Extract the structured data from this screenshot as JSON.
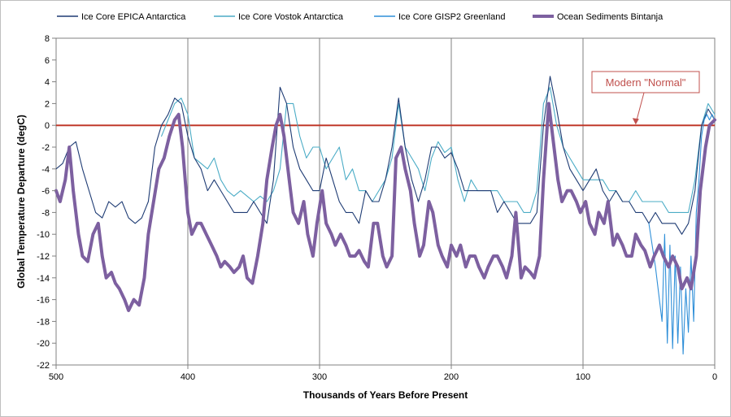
{
  "chart_data": {
    "type": "line",
    "title": "",
    "xlabel": "Thousands of Years Before Present",
    "ylabel": "Global Temperature Departure (degC)",
    "xlim": [
      500,
      0
    ],
    "ylim": [
      -22,
      8
    ],
    "x_ticks": [
      500,
      400,
      300,
      200,
      100,
      0
    ],
    "y_ticks": [
      8,
      6,
      4,
      2,
      0,
      -2,
      -4,
      -6,
      -8,
      -10,
      -12,
      -14,
      -16,
      -18,
      -20,
      -22
    ],
    "grid": "vertical",
    "legend_position": "top",
    "reference_line": {
      "y": 0,
      "color": "#c0392b"
    },
    "annotation": {
      "text": "Modern \"Normal\"",
      "points_to": {
        "x": 60,
        "y": 0
      }
    },
    "series": [
      {
        "name": "Ice Core EPICA Antarctica",
        "color": "#1f3c74",
        "x": [
          500,
          495,
          490,
          485,
          480,
          475,
          470,
          465,
          460,
          455,
          450,
          445,
          440,
          435,
          430,
          425,
          420,
          415,
          410,
          405,
          400,
          395,
          390,
          385,
          380,
          375,
          370,
          365,
          360,
          355,
          350,
          345,
          340,
          335,
          330,
          325,
          320,
          315,
          310,
          305,
          300,
          295,
          290,
          285,
          280,
          275,
          270,
          265,
          260,
          255,
          250,
          245,
          240,
          235,
          230,
          225,
          220,
          215,
          210,
          205,
          200,
          195,
          190,
          185,
          180,
          175,
          170,
          165,
          160,
          155,
          150,
          145,
          140,
          135,
          130,
          125,
          120,
          115,
          110,
          105,
          100,
          95,
          90,
          85,
          80,
          75,
          70,
          65,
          60,
          55,
          50,
          45,
          40,
          35,
          30,
          25,
          20,
          15,
          10,
          5,
          0
        ],
        "y": [
          -4,
          -3.5,
          -2,
          -1.5,
          -4,
          -6,
          -8,
          -8.5,
          -7,
          -7.5,
          -7,
          -8.5,
          -9,
          -8.5,
          -7,
          -2,
          0,
          1,
          2.5,
          2,
          -1,
          -3,
          -4,
          -6,
          -5,
          -6,
          -7,
          -8,
          -8,
          -8,
          -7,
          -8,
          -9,
          -5,
          3.5,
          2,
          -2,
          -4,
          -5,
          -6,
          -6,
          -3,
          -5,
          -7,
          -8,
          -8,
          -9,
          -6,
          -7,
          -7,
          -5,
          -2,
          2.5,
          -2,
          -5,
          -7,
          -5,
          -2,
          -2,
          -3,
          -2.5,
          -4,
          -6,
          -6,
          -6,
          -6,
          -6,
          -8,
          -7,
          -8,
          -9,
          -9,
          -9,
          -8,
          0,
          4.5,
          1.5,
          -2,
          -4,
          -5,
          -6,
          -5,
          -4,
          -6,
          -7,
          -6,
          -7,
          -7,
          -8,
          -8,
          -9,
          -8,
          -9,
          -9,
          -9,
          -10,
          -9,
          -6,
          0,
          1.5,
          0.5
        ]
      },
      {
        "name": "Ice Core Vostok Antarctica",
        "color": "#4bacc6",
        "x": [
          420,
          415,
          410,
          405,
          400,
          395,
          390,
          385,
          380,
          375,
          370,
          365,
          360,
          355,
          350,
          345,
          340,
          335,
          330,
          325,
          320,
          315,
          310,
          305,
          300,
          295,
          290,
          285,
          280,
          275,
          270,
          265,
          260,
          255,
          250,
          245,
          240,
          235,
          230,
          225,
          220,
          215,
          210,
          205,
          200,
          195,
          190,
          185,
          180,
          175,
          170,
          165,
          160,
          155,
          150,
          145,
          140,
          135,
          130,
          125,
          120,
          115,
          110,
          105,
          100,
          95,
          90,
          85,
          80,
          75,
          70,
          65,
          60,
          55,
          50,
          45,
          40,
          35,
          30,
          25,
          20,
          15,
          10,
          5,
          0
        ],
        "y": [
          -1,
          0.5,
          2,
          2.5,
          1,
          -3,
          -3.5,
          -4,
          -3,
          -5,
          -6,
          -6.5,
          -6,
          -6.5,
          -7,
          -6.5,
          -7,
          -6,
          -4,
          2,
          2,
          -1,
          -3,
          -2,
          -2,
          -4,
          -3,
          -2,
          -5,
          -4,
          -6,
          -6,
          -7,
          -6,
          -5,
          -3,
          2,
          -2,
          -3,
          -4,
          -6,
          -3,
          -1.5,
          -2.5,
          -2,
          -5,
          -7,
          -5,
          -6,
          -6,
          -6,
          -6,
          -7,
          -7,
          -7,
          -8,
          -8,
          -6,
          2,
          3.5,
          0,
          -2,
          -3,
          -4,
          -5,
          -5,
          -5,
          -5,
          -6,
          -6,
          -7,
          -7,
          -6,
          -7,
          -7,
          -7,
          -7,
          -8,
          -8,
          -8,
          -8,
          -5,
          0,
          2,
          1
        ]
      },
      {
        "name": "Ice Core GISP2 Greenland",
        "color": "#2f8fd8",
        "x": [
          50,
          45,
          40,
          38,
          36,
          34,
          32,
          30,
          28,
          26,
          24,
          22,
          20,
          18,
          16,
          14,
          12,
          10,
          8,
          6,
          4,
          2,
          0
        ],
        "y": [
          -9,
          -13,
          -18,
          -10,
          -20,
          -11,
          -20.5,
          -12,
          -20,
          -13,
          -21,
          -15,
          -19,
          -12,
          -18,
          -8,
          -5,
          -1,
          0.5,
          1,
          0.5,
          1,
          0.5
        ]
      },
      {
        "name": "Ocean Sediments Bintanja",
        "color": "#7d60a0",
        "x": [
          500,
          497,
          493,
          490,
          487,
          483,
          480,
          476,
          472,
          468,
          465,
          462,
          458,
          455,
          452,
          448,
          445,
          441,
          437,
          433,
          430,
          426,
          422,
          418,
          414,
          410,
          407,
          404,
          400,
          397,
          393,
          390,
          386,
          382,
          378,
          375,
          372,
          368,
          365,
          361,
          358,
          355,
          351,
          347,
          343,
          340,
          336,
          333,
          330,
          327,
          323,
          320,
          316,
          312,
          309,
          305,
          302,
          298,
          295,
          291,
          288,
          284,
          280,
          277,
          273,
          270,
          266,
          263,
          259,
          256,
          252,
          249,
          245,
          242,
          238,
          235,
          231,
          228,
          224,
          221,
          217,
          214,
          210,
          207,
          203,
          200,
          196,
          193,
          189,
          186,
          182,
          179,
          175,
          172,
          168,
          165,
          161,
          158,
          154,
          151,
          147,
          144,
          140,
          137,
          133,
          130,
          126,
          123,
          119,
          116,
          112,
          109,
          105,
          102,
          98,
          95,
          91,
          88,
          84,
          81,
          77,
          74,
          70,
          67,
          63,
          60,
          56,
          53,
          49,
          46,
          42,
          39,
          35,
          32,
          28,
          25,
          21,
          18,
          14,
          11,
          7,
          4,
          0
        ],
        "y": [
          -6,
          -7,
          -5,
          -2,
          -6,
          -10,
          -12,
          -12.5,
          -10,
          -9,
          -12,
          -14,
          -13.5,
          -14.5,
          -15,
          -16,
          -17,
          -16,
          -16.5,
          -14,
          -10,
          -7,
          -4,
          -3,
          -1,
          0.5,
          1,
          -2,
          -8,
          -10,
          -9,
          -9,
          -10,
          -11,
          -12,
          -13,
          -12.5,
          -13,
          -13.5,
          -13,
          -12,
          -14,
          -14.5,
          -12,
          -9,
          -5,
          -2,
          0,
          1,
          -1,
          -5,
          -8,
          -9,
          -7,
          -10,
          -12,
          -9,
          -6,
          -9,
          -10,
          -11,
          -10,
          -11,
          -12,
          -12,
          -11.5,
          -12.5,
          -13,
          -9,
          -9,
          -12,
          -13,
          -12,
          -3,
          -2,
          -4,
          -6,
          -9,
          -12,
          -11,
          -7,
          -8,
          -11,
          -12,
          -13,
          -11,
          -12,
          -11,
          -13,
          -12,
          -12,
          -13,
          -14,
          -13,
          -12,
          -12,
          -13,
          -14,
          -12,
          -8,
          -14,
          -13,
          -13.5,
          -14,
          -12,
          -5,
          2,
          -1,
          -5,
          -7,
          -6,
          -6,
          -7,
          -8,
          -7,
          -9,
          -10,
          -8,
          -9,
          -7,
          -11,
          -10,
          -11,
          -12,
          -12,
          -10,
          -11,
          -11.5,
          -13,
          -12,
          -11,
          -12,
          -13,
          -12,
          -13,
          -15,
          -14,
          -15,
          -12,
          -6,
          -2,
          0,
          0.5
        ]
      }
    ]
  }
}
